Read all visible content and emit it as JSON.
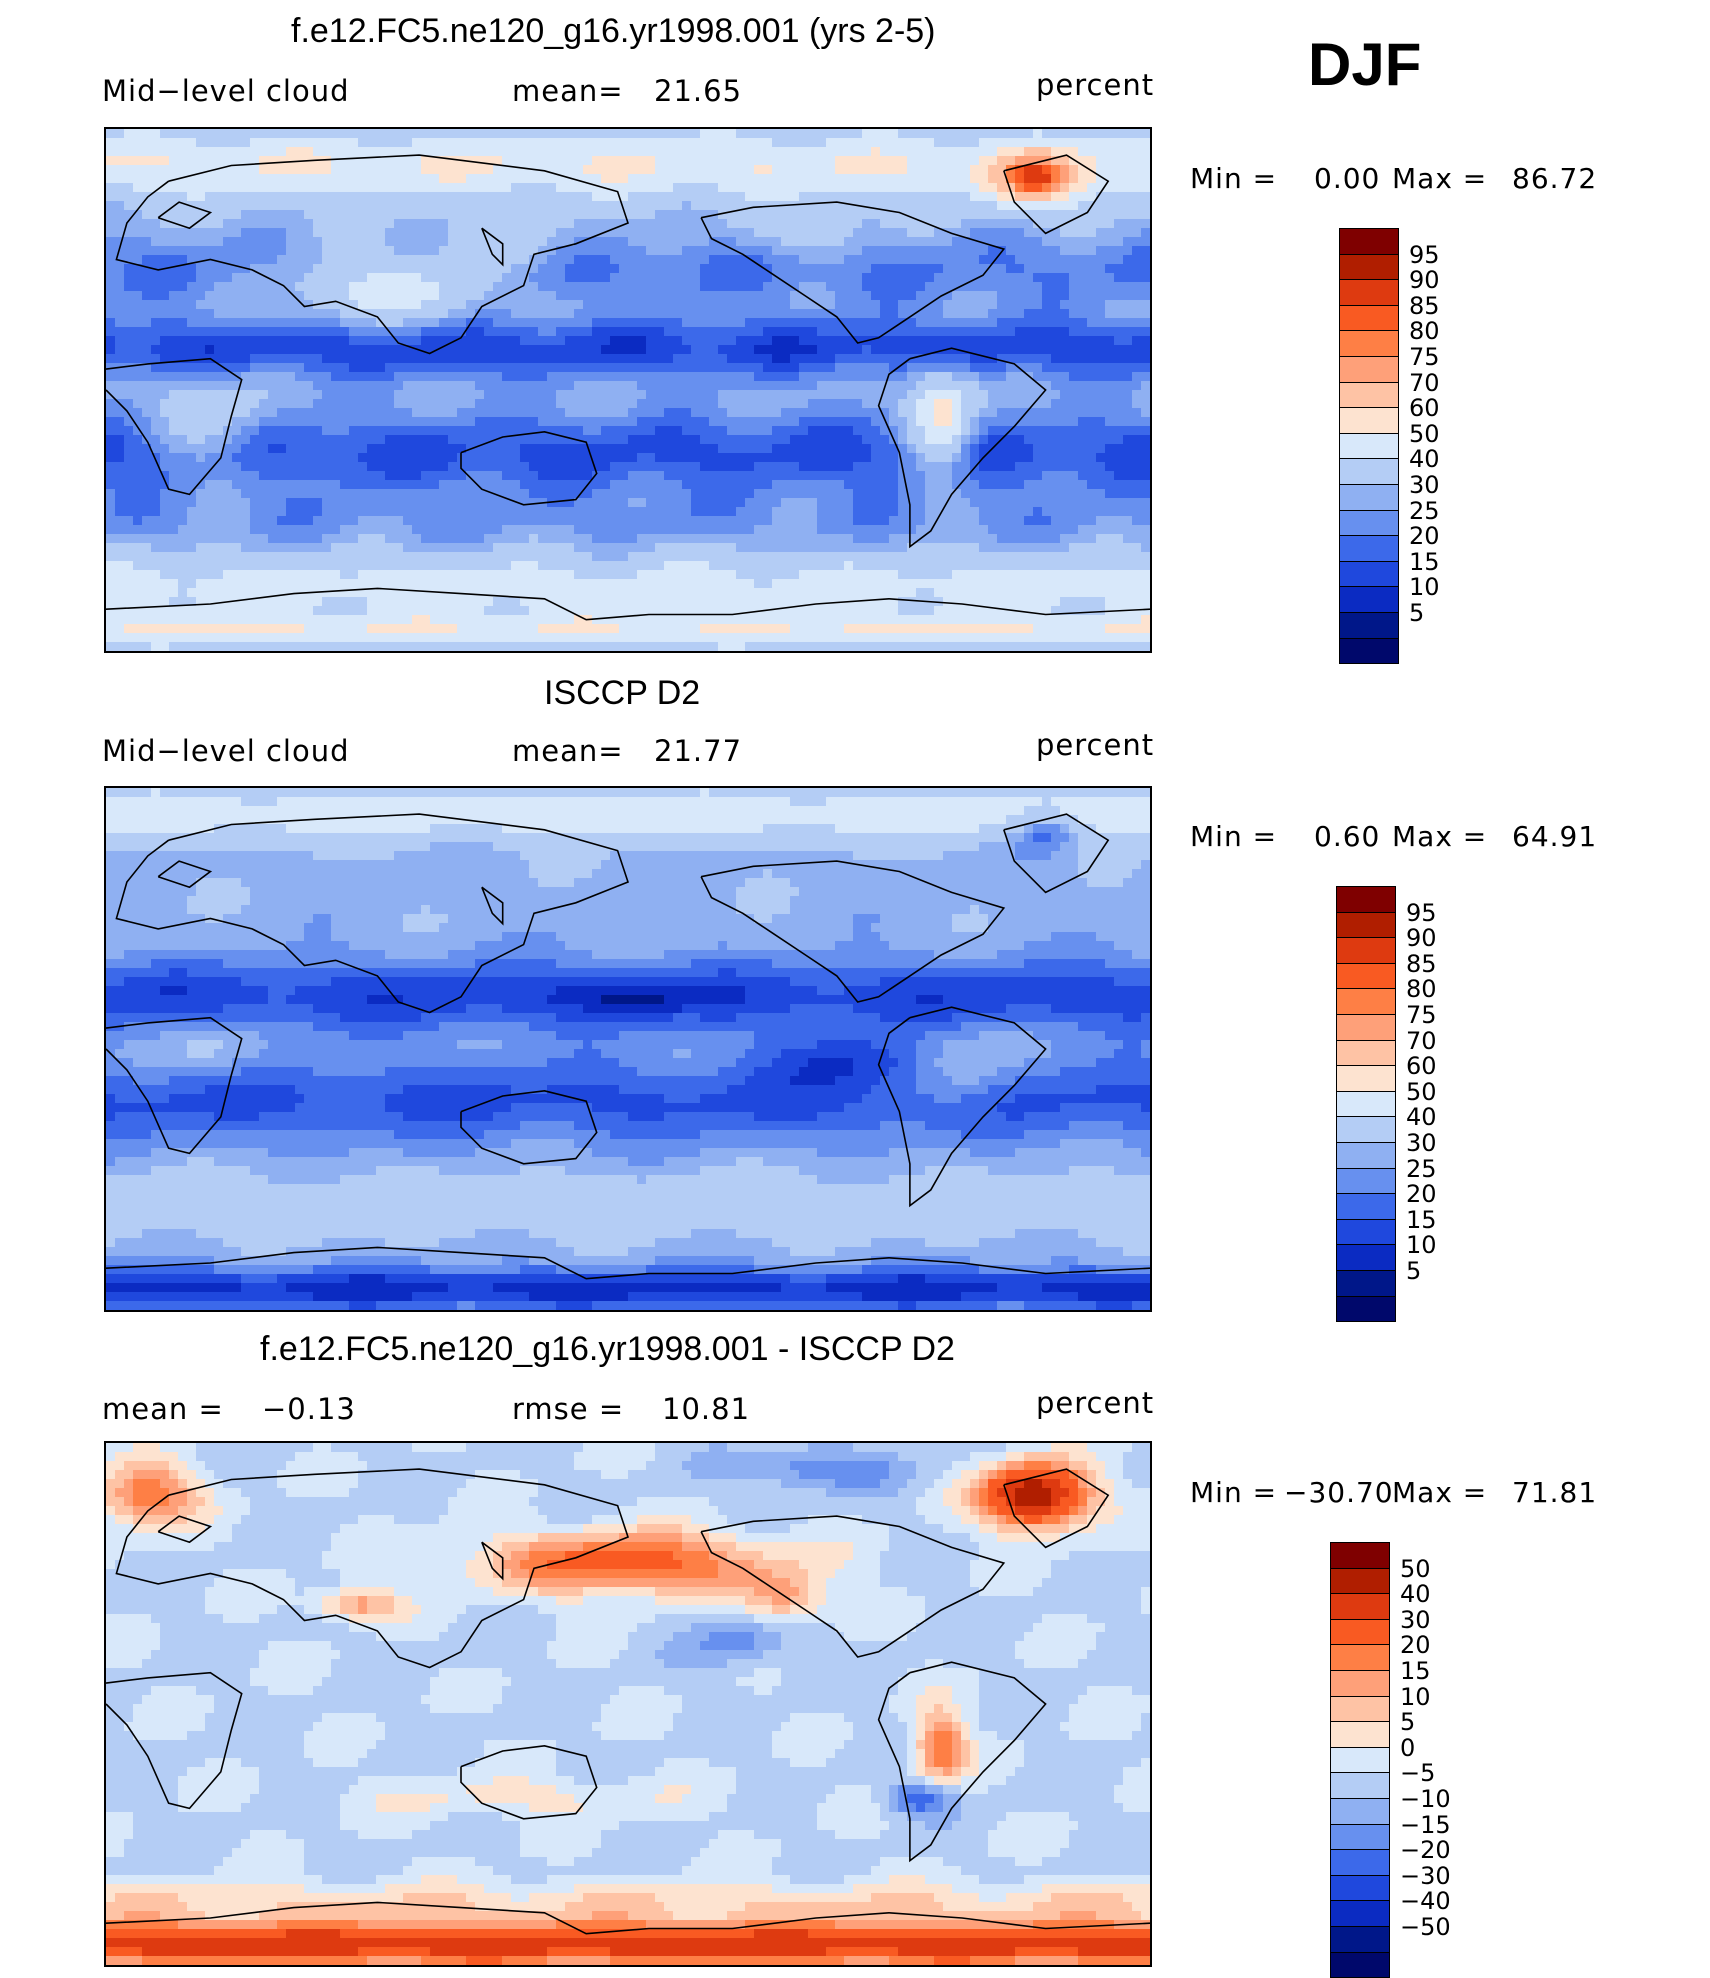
{
  "season": "DJF",
  "panels": [
    {
      "id": "model",
      "title": "f.e12.FC5.ne120_g16.yr1998.001 (yrs 2-5)",
      "left_label": "Mid−level cloud",
      "stat_label": "mean=",
      "stat_value": "21.65",
      "units": "percent",
      "minmax": {
        "min_label": "Min  =",
        "min": "0.00",
        "max_label": "Max  =",
        "max": "86.72"
      },
      "colorbar_labels": [
        "95",
        "90",
        "85",
        "80",
        "75",
        "70",
        "60",
        "50",
        "40",
        "30",
        "25",
        "20",
        "15",
        "10",
        "5"
      ],
      "colors": [
        "#7f0000",
        "#b01e00",
        "#de3a10",
        "#f95a22",
        "#fe7f45",
        "#fea079",
        "#fec3a5",
        "#fde3d0",
        "#d8e8fa",
        "#b4cdf5",
        "#8fb0f2",
        "#6790ef",
        "#3c69ea",
        "#1f48dd",
        "#0b2bc2",
        "#001789",
        "#00086b"
      ],
      "field": "model"
    },
    {
      "id": "obs",
      "title": "ISCCP D2",
      "left_label": "Mid−level cloud",
      "stat_label": "mean=",
      "stat_value": "21.77",
      "units": "percent",
      "minmax": {
        "min_label": "Min  =",
        "min": "0.60",
        "max_label": "Max  =",
        "max": "64.91"
      },
      "colorbar_labels": [
        "95",
        "90",
        "85",
        "80",
        "75",
        "70",
        "60",
        "50",
        "40",
        "30",
        "25",
        "20",
        "15",
        "10",
        "5"
      ],
      "colors": [
        "#7f0000",
        "#b01e00",
        "#de3a10",
        "#f95a22",
        "#fe7f45",
        "#fea079",
        "#fec3a5",
        "#fde3d0",
        "#d8e8fa",
        "#b4cdf5",
        "#8fb0f2",
        "#6790ef",
        "#3c69ea",
        "#1f48dd",
        "#0b2bc2",
        "#001789",
        "#00086b"
      ],
      "field": "obs"
    },
    {
      "id": "diff",
      "title": "f.e12.FC5.ne120_g16.yr1998.001 - ISCCP D2",
      "left_label": "mean  =",
      "left_value": "−0.13",
      "stat_label": "rmse  =",
      "stat_value": "10.81",
      "units": "percent",
      "minmax": {
        "min_label": "Min  =",
        "min": "−30.70",
        "max_label": "Max  =",
        "max": "71.81"
      },
      "colorbar_labels": [
        "50",
        "40",
        "30",
        "20",
        "15",
        "10",
        "5",
        "0",
        "−5",
        "−10",
        "−15",
        "−20",
        "−30",
        "−40",
        "−50"
      ],
      "colors": [
        "#7f0000",
        "#b01e00",
        "#de3a10",
        "#f95a22",
        "#fe7f45",
        "#fea079",
        "#fec3a5",
        "#fde3d0",
        "#d8e8fa",
        "#b4cdf5",
        "#8fb0f2",
        "#6790ef",
        "#3c69ea",
        "#1f48dd",
        "#0b2bc2",
        "#001789",
        "#00086b"
      ],
      "field": "diff"
    }
  ]
}
